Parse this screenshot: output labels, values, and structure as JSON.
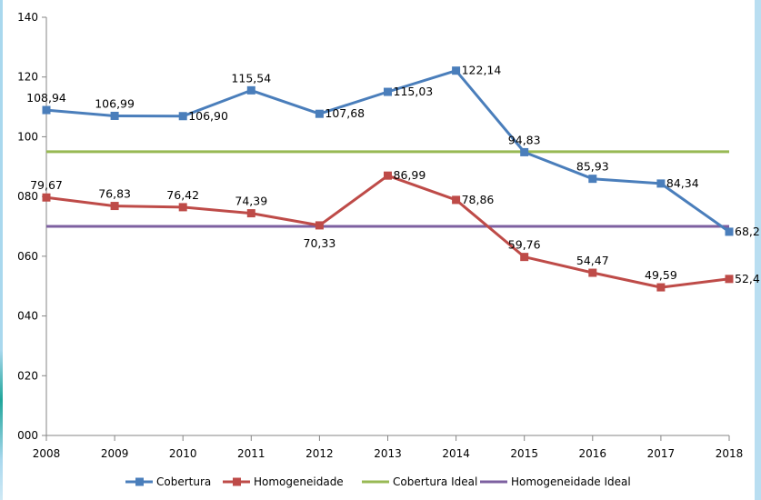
{
  "chart_data": {
    "type": "line",
    "title": "",
    "xlabel": "",
    "ylabel": "",
    "x": [
      "2008",
      "2009",
      "2010",
      "2011",
      "2012",
      "2013",
      "2014",
      "2015",
      "2016",
      "2017",
      "2018"
    ],
    "ylim": [
      0,
      140
    ],
    "yticks": [
      "000",
      "020",
      "040",
      "060",
      "080",
      "100",
      "120",
      "140"
    ],
    "ytick_values": [
      0,
      20,
      40,
      60,
      80,
      100,
      120,
      140
    ],
    "grid": false,
    "legend_position": "bottom",
    "series": [
      {
        "name": "Cobertura",
        "color": "#4a7ebb",
        "marker": "square",
        "values": [
          108.94,
          106.99,
          106.9,
          115.54,
          107.68,
          115.03,
          122.14,
          94.83,
          85.93,
          84.34,
          68.2
        ],
        "labels": [
          "108,94",
          "106,99",
          "106,90",
          "115,54",
          "107,68",
          "115,03",
          "122,14",
          "94,83",
          "85,93",
          "84,34",
          "68,2"
        ]
      },
      {
        "name": "Homogeneidade",
        "color": "#be4b48",
        "marker": "square",
        "values": [
          79.67,
          76.83,
          76.42,
          74.39,
          70.33,
          86.99,
          78.86,
          59.76,
          54.47,
          49.59,
          52.4
        ],
        "labels": [
          "79,67",
          "76,83",
          "76,42",
          "74,39",
          "70,33",
          "86,99",
          "78,86",
          "59,76",
          "54,47",
          "49,59",
          "52,4"
        ]
      },
      {
        "name": "Cobertura Ideal",
        "color": "#98b954",
        "marker": "none",
        "values": [
          95,
          95,
          95,
          95,
          95,
          95,
          95,
          95,
          95,
          95,
          95
        ]
      },
      {
        "name": "Homogeneidade Ideal",
        "color": "#7d60a0",
        "marker": "none",
        "values": [
          70,
          70,
          70,
          70,
          70,
          70,
          70,
          70,
          70,
          70,
          70
        ]
      }
    ]
  }
}
